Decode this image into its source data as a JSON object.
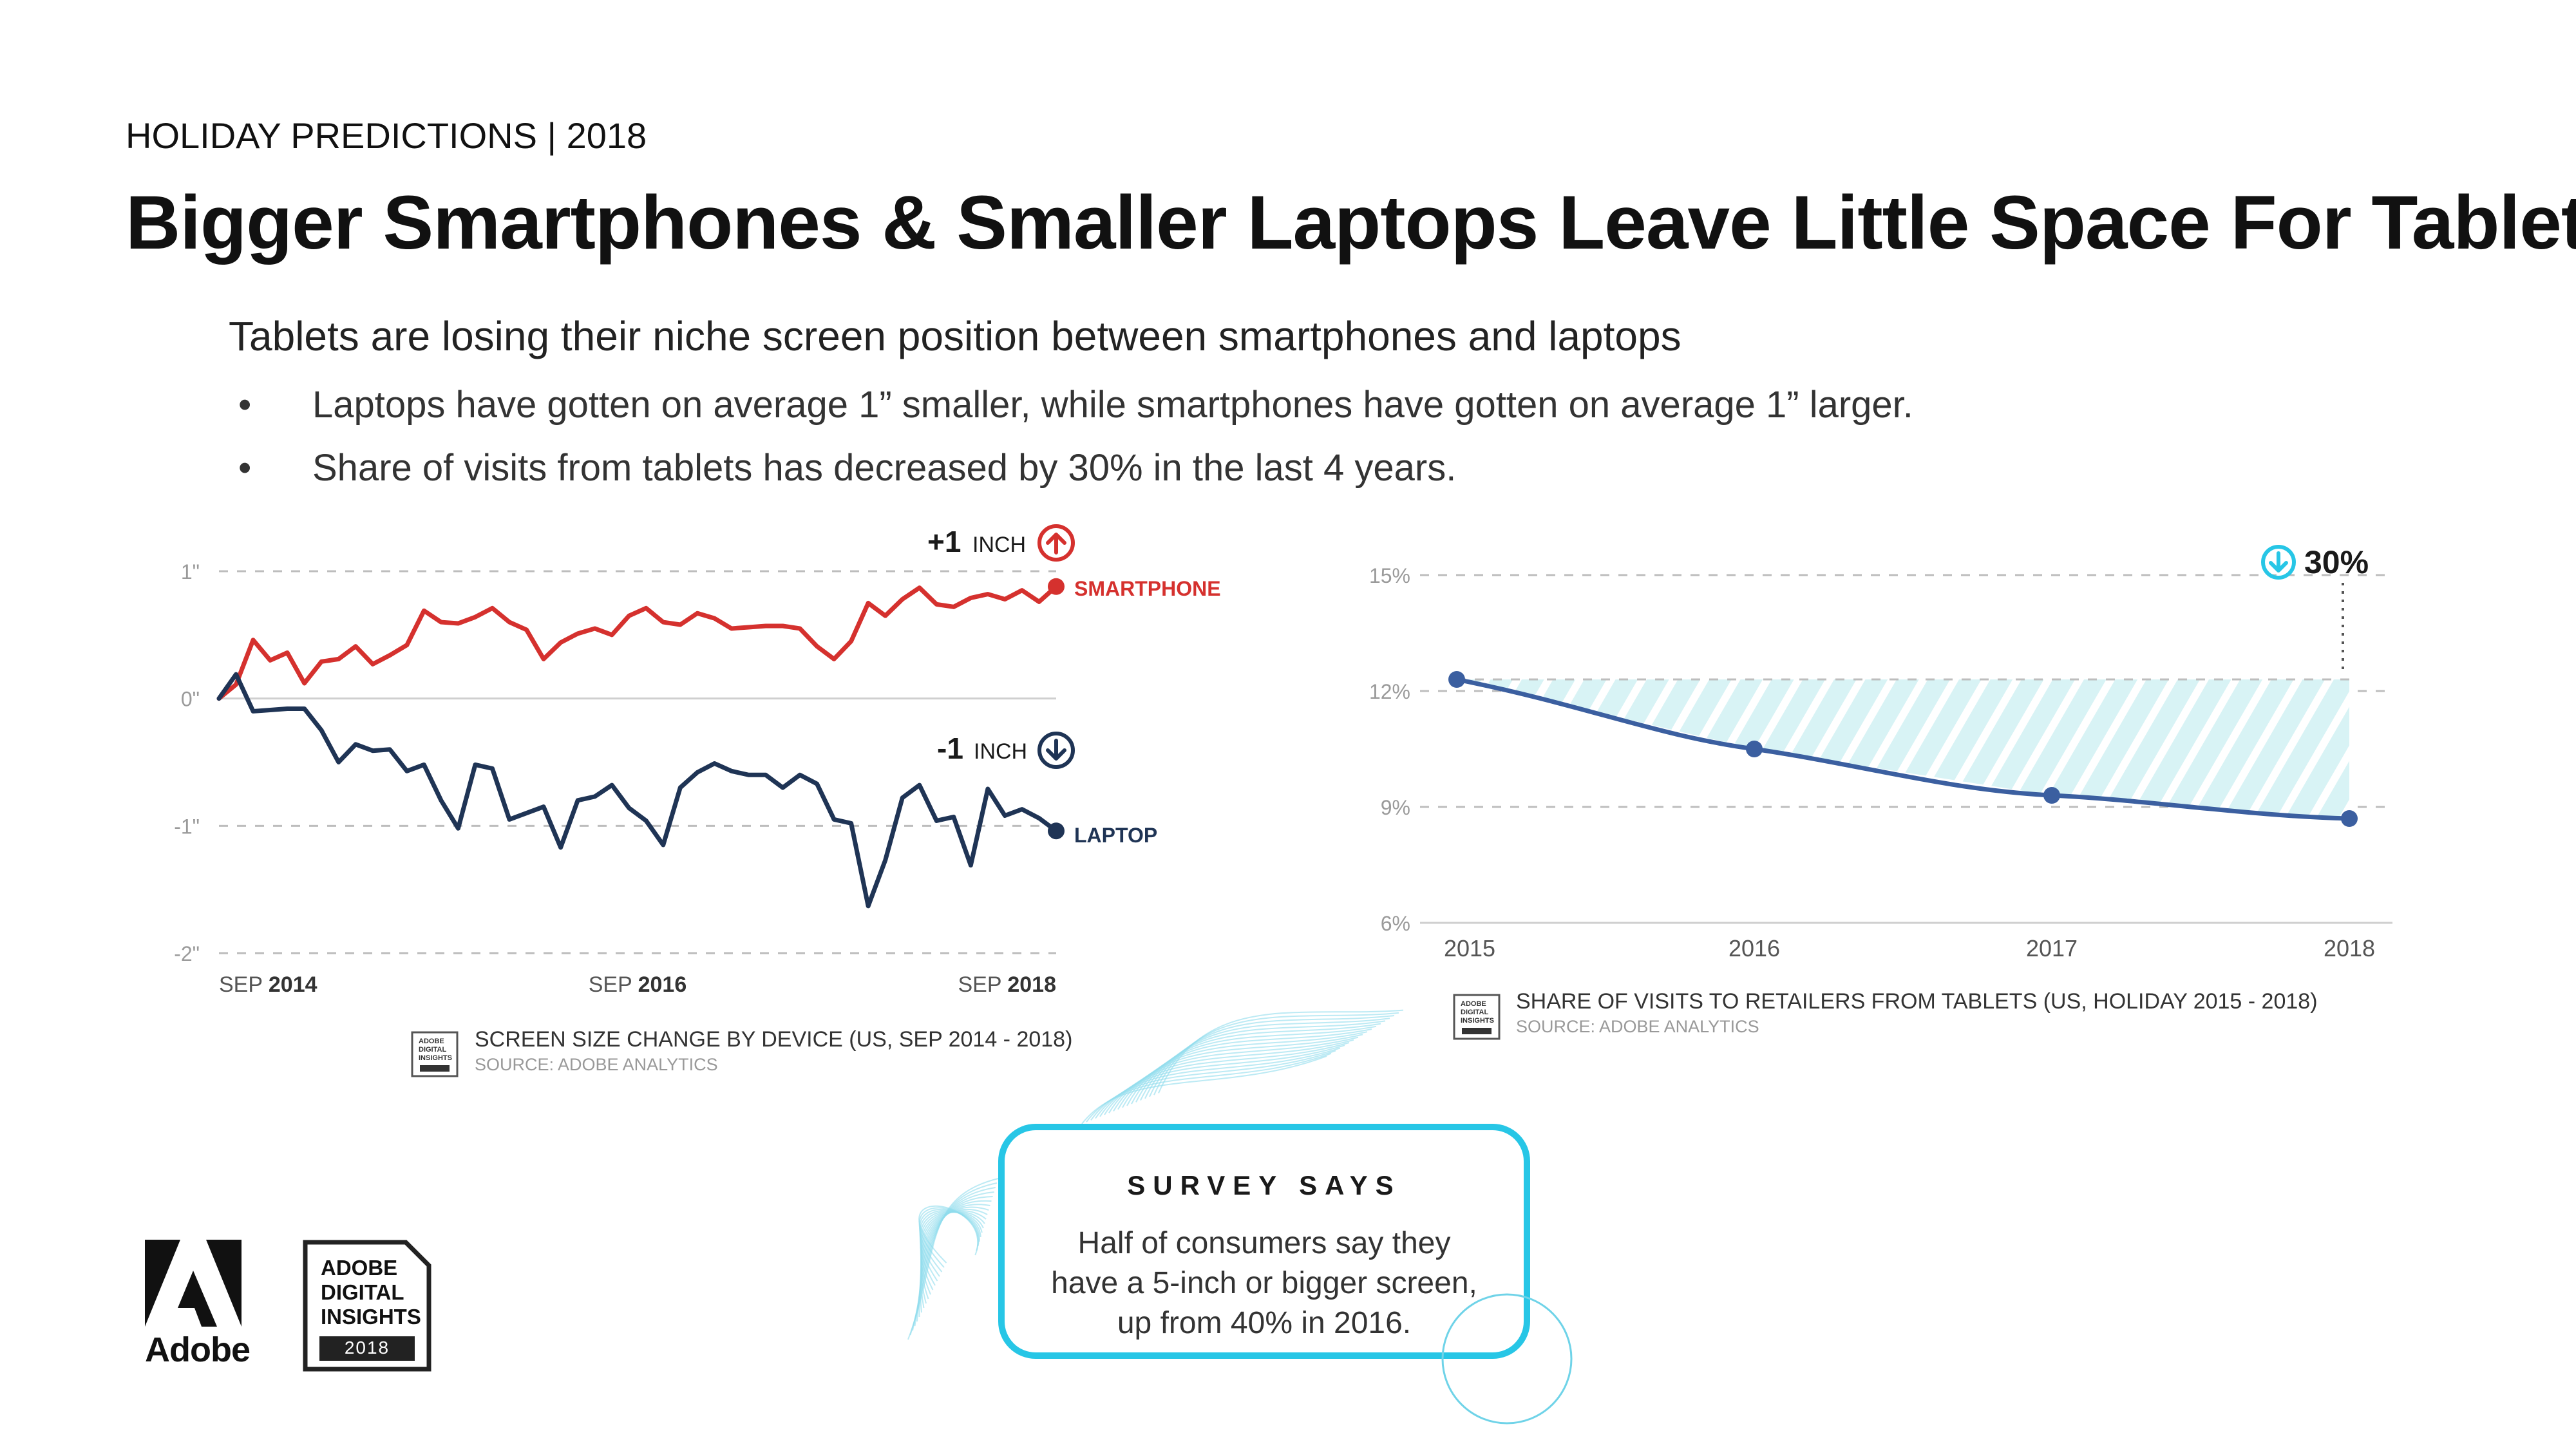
{
  "header": {
    "kicker": "HOLIDAY PREDICTIONS | 2018",
    "title": "Bigger Smartphones & Smaller Laptops Leave Little Space For Tablets",
    "lead": "Tablets are losing their niche screen position between smartphones and laptops",
    "bullets": [
      "Laptops have gotten on average 1” smaller, while smartphones have gotten on average 1” larger.",
      "Share of visits from tablets has decreased by 30% in the last 4 years."
    ]
  },
  "colors": {
    "smartphone": "#d5312e",
    "laptop": "#1f3455",
    "tablet_line": "#3b5fa0",
    "tablet_fill": "#d8f3f5",
    "accent_cyan": "#27c6e6",
    "grid": "#bdbdbd"
  },
  "chart_data": [
    {
      "type": "line",
      "title": "SCREEN SIZE CHANGE BY DEVICE (US, SEP 2014 - 2018)",
      "source": "SOURCE: ADOBE ANALYTICS",
      "y_ticks": [
        "1\"",
        "0\"",
        "-1\"",
        "-2\""
      ],
      "y_tick_values": [
        1,
        0,
        -1,
        -2
      ],
      "ylim": [
        -2,
        1
      ],
      "x_labels": [
        {
          "prefix": "SEP",
          "year": "2014"
        },
        {
          "prefix": "SEP",
          "year": "2016"
        },
        {
          "prefix": "SEP",
          "year": "2018"
        }
      ],
      "series": [
        {
          "name": "SMARTPHONE",
          "annotation_value": "+1",
          "annotation_unit": "INCH",
          "values": [
            0.0,
            0.11,
            0.46,
            0.3,
            0.36,
            0.12,
            0.29,
            0.31,
            0.41,
            0.27,
            0.34,
            0.42,
            0.69,
            0.6,
            0.59,
            0.64,
            0.71,
            0.6,
            0.54,
            0.31,
            0.44,
            0.51,
            0.55,
            0.5,
            0.65,
            0.71,
            0.6,
            0.58,
            0.67,
            0.63,
            0.55,
            0.56,
            0.57,
            0.57,
            0.55,
            0.41,
            0.31,
            0.45,
            0.75,
            0.65,
            0.78,
            0.87,
            0.74,
            0.72,
            0.79,
            0.82,
            0.78,
            0.85,
            0.76,
            0.88
          ]
        },
        {
          "name": "LAPTOP",
          "annotation_value": "-1",
          "annotation_unit": "INCH",
          "values": [
            0.0,
            0.19,
            -0.1,
            -0.09,
            -0.08,
            -0.08,
            -0.25,
            -0.5,
            -0.36,
            -0.41,
            -0.4,
            -0.57,
            -0.52,
            -0.8,
            -1.02,
            -0.52,
            -0.55,
            -0.95,
            -0.9,
            -0.85,
            -1.17,
            -0.8,
            -0.77,
            -0.68,
            -0.86,
            -0.96,
            -1.15,
            -0.7,
            -0.58,
            -0.51,
            -0.57,
            -0.6,
            -0.6,
            -0.7,
            -0.6,
            -0.67,
            -0.95,
            -0.98,
            -1.63,
            -1.27,
            -0.78,
            -0.68,
            -0.96,
            -0.93,
            -1.31,
            -0.71,
            -0.92,
            -0.87,
            -0.94,
            -1.04
          ]
        }
      ]
    },
    {
      "type": "line",
      "title": "SHARE OF VISITS TO RETAILERS FROM TABLETS (US, HOLIDAY 2015 - 2018)",
      "source": "SOURCE: ADOBE ANALYTICS",
      "x": [
        "2015",
        "2016",
        "2017",
        "2018"
      ],
      "y_ticks": [
        "15%",
        "12%",
        "9%",
        "6%"
      ],
      "y_tick_values": [
        15,
        12,
        9,
        6
      ],
      "ylim": [
        6,
        15
      ],
      "series": [
        {
          "name": "Tablet share of visits",
          "values": [
            12.3,
            10.5,
            9.3,
            8.7
          ]
        }
      ],
      "annotation": "30%"
    }
  ],
  "survey": {
    "heading": "SURVEY SAYS",
    "body": "Half of consumers say they have a 5-inch or bigger screen, up from 40% in 2016."
  },
  "badge_small": {
    "line1": "ADOBE",
    "line2": "DIGITAL",
    "line3": "INSIGHTS"
  },
  "footer": {
    "adobe_wordmark": "Adobe",
    "badge": {
      "line1": "ADOBE",
      "line2": "DIGITAL",
      "line3": "INSIGHTS",
      "year": "2018"
    }
  }
}
